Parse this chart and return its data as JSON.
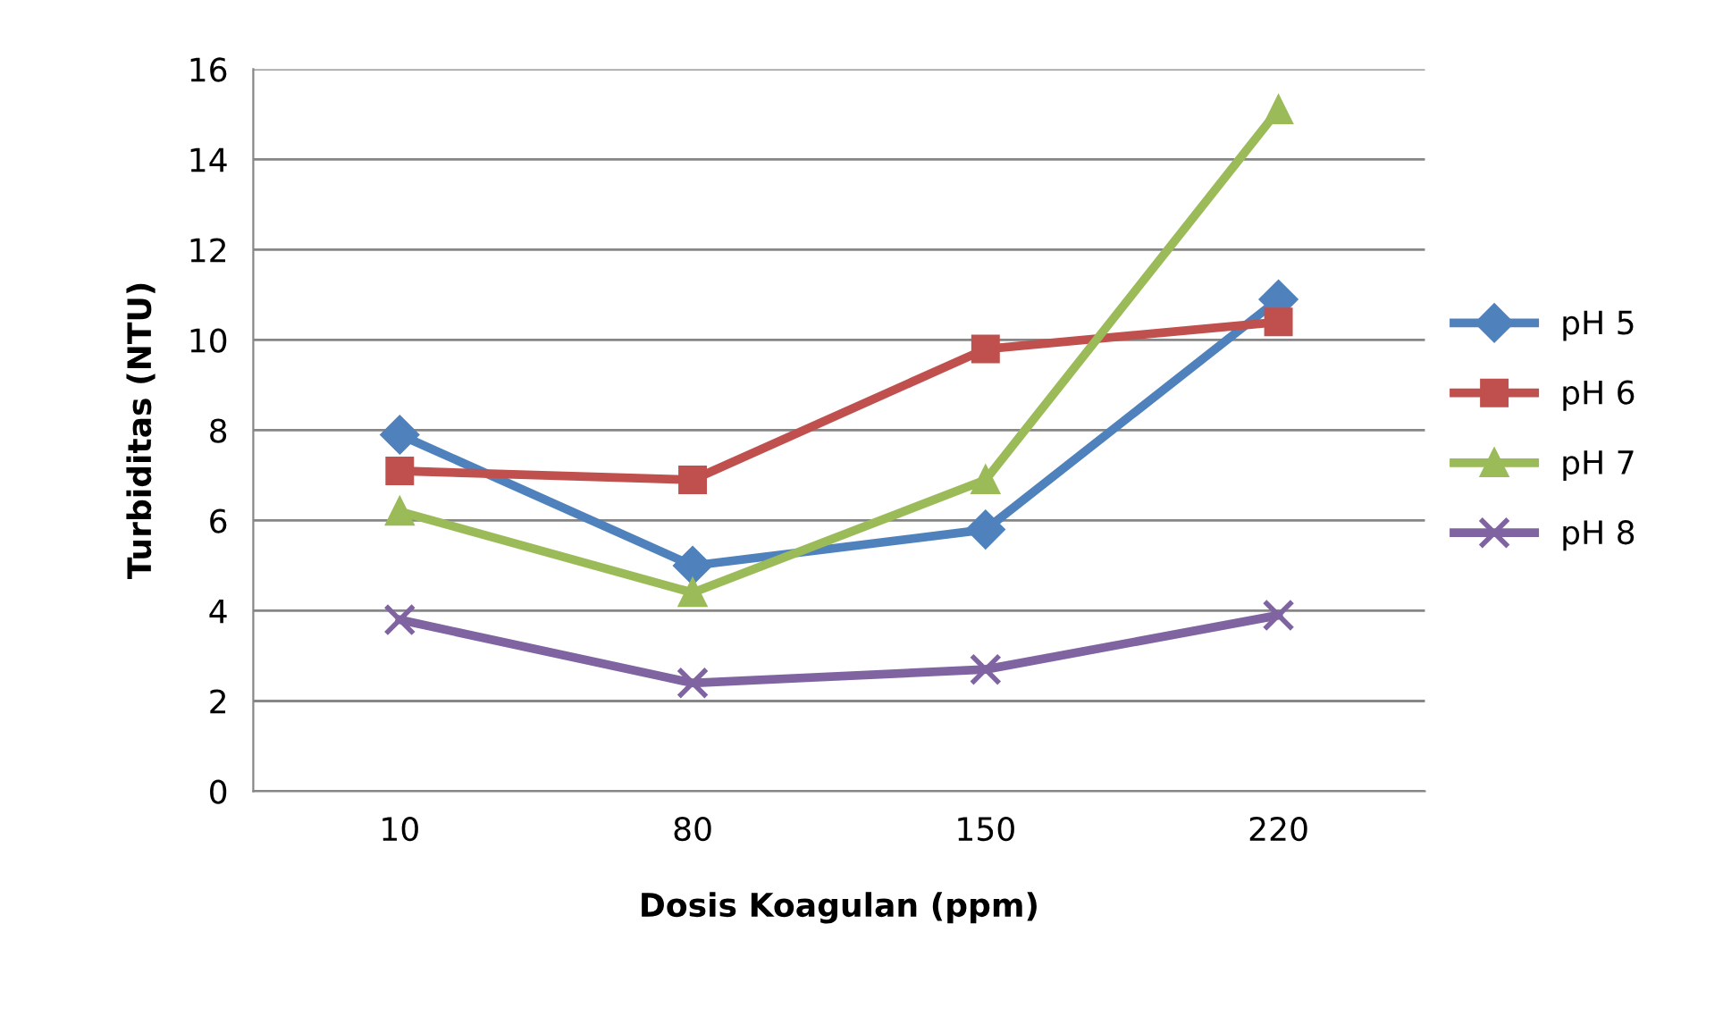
{
  "chart_data": {
    "type": "line",
    "xlabel": "Dosis Koagulan (ppm)",
    "ylabel": "Turbiditas (NTU)",
    "categories": [
      "10",
      "80",
      "150",
      "220"
    ],
    "series": [
      {
        "name": "pH 5",
        "color": "#4f81bd",
        "marker": "diamond",
        "values": [
          7.9,
          5.0,
          5.8,
          10.9
        ]
      },
      {
        "name": "pH 6",
        "color": "#c0504d",
        "marker": "square",
        "values": [
          7.1,
          6.9,
          9.8,
          10.4
        ]
      },
      {
        "name": "pH 7",
        "color": "#9bbb59",
        "marker": "triangle",
        "values": [
          6.2,
          4.4,
          6.9,
          15.1
        ]
      },
      {
        "name": "pH 8",
        "color": "#8064a2",
        "marker": "cross",
        "values": [
          3.8,
          2.4,
          2.7,
          3.9
        ]
      }
    ],
    "ylim": [
      0,
      16
    ],
    "yticks": [
      0,
      2,
      4,
      6,
      8,
      10,
      12,
      14,
      16
    ],
    "grid": "y",
    "legend": "right",
    "line_style": "solid"
  }
}
